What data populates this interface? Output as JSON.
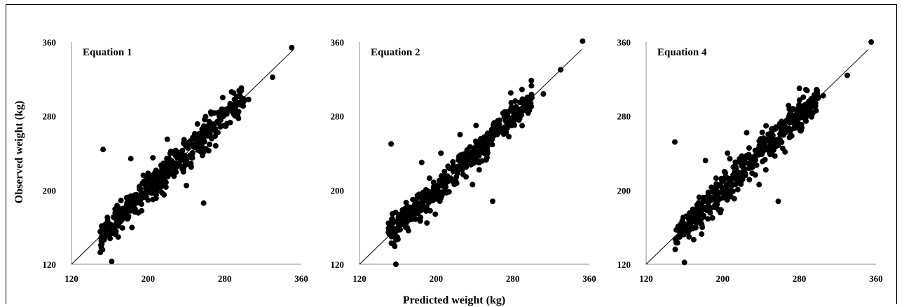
{
  "chart_data": {
    "type": "scatter",
    "xlabel": "Predicted weight (kg)",
    "ylabel": "Observed weight (kg)",
    "xlim": [
      120,
      360
    ],
    "ylim": [
      120,
      360
    ],
    "xticks": [
      "120",
      "200",
      "280",
      "360"
    ],
    "yticks": [
      "120",
      "200",
      "280",
      "360"
    ],
    "reference_line": "y = x",
    "marker_color": "#000000",
    "line_color": "#000000",
    "panels": [
      {
        "title": "Equation 1",
        "outliers": [
          [
            153,
            244
          ],
          [
            162,
            123
          ],
          [
            182,
            234
          ],
          [
            205,
            235
          ],
          [
            220,
            255
          ],
          [
            258,
            186
          ],
          [
            278,
            300
          ],
          [
            330,
            322
          ],
          [
            350,
            354
          ],
          [
            300,
            296
          ],
          [
            290,
            292
          ],
          [
            305,
            298
          ],
          [
            245,
            225
          ],
          [
            195,
            216
          ],
          [
            240,
            205
          ]
        ]
      },
      {
        "title": "Equation 2",
        "outliers": [
          [
            153,
            250
          ],
          [
            158,
            120
          ],
          [
            185,
            230
          ],
          [
            205,
            240
          ],
          [
            225,
            260
          ],
          [
            259,
            188
          ],
          [
            278,
            305
          ],
          [
            330,
            330
          ],
          [
            353,
            361
          ],
          [
            300,
            300
          ],
          [
            290,
            296
          ],
          [
            312,
            304
          ],
          [
            245,
            222
          ],
          [
            193,
            213
          ],
          [
            238,
            206
          ]
        ]
      },
      {
        "title": "Equation 4",
        "outliers": [
          [
            150,
            252
          ],
          [
            160,
            122
          ],
          [
            182,
            232
          ],
          [
            205,
            240
          ],
          [
            225,
            262
          ],
          [
            258,
            188
          ],
          [
            280,
            310
          ],
          [
            330,
            324
          ],
          [
            355,
            360
          ],
          [
            300,
            300
          ],
          [
            290,
            296
          ],
          [
            305,
            302
          ],
          [
            245,
            222
          ],
          [
            193,
            213
          ],
          [
            238,
            206
          ]
        ]
      }
    ]
  }
}
